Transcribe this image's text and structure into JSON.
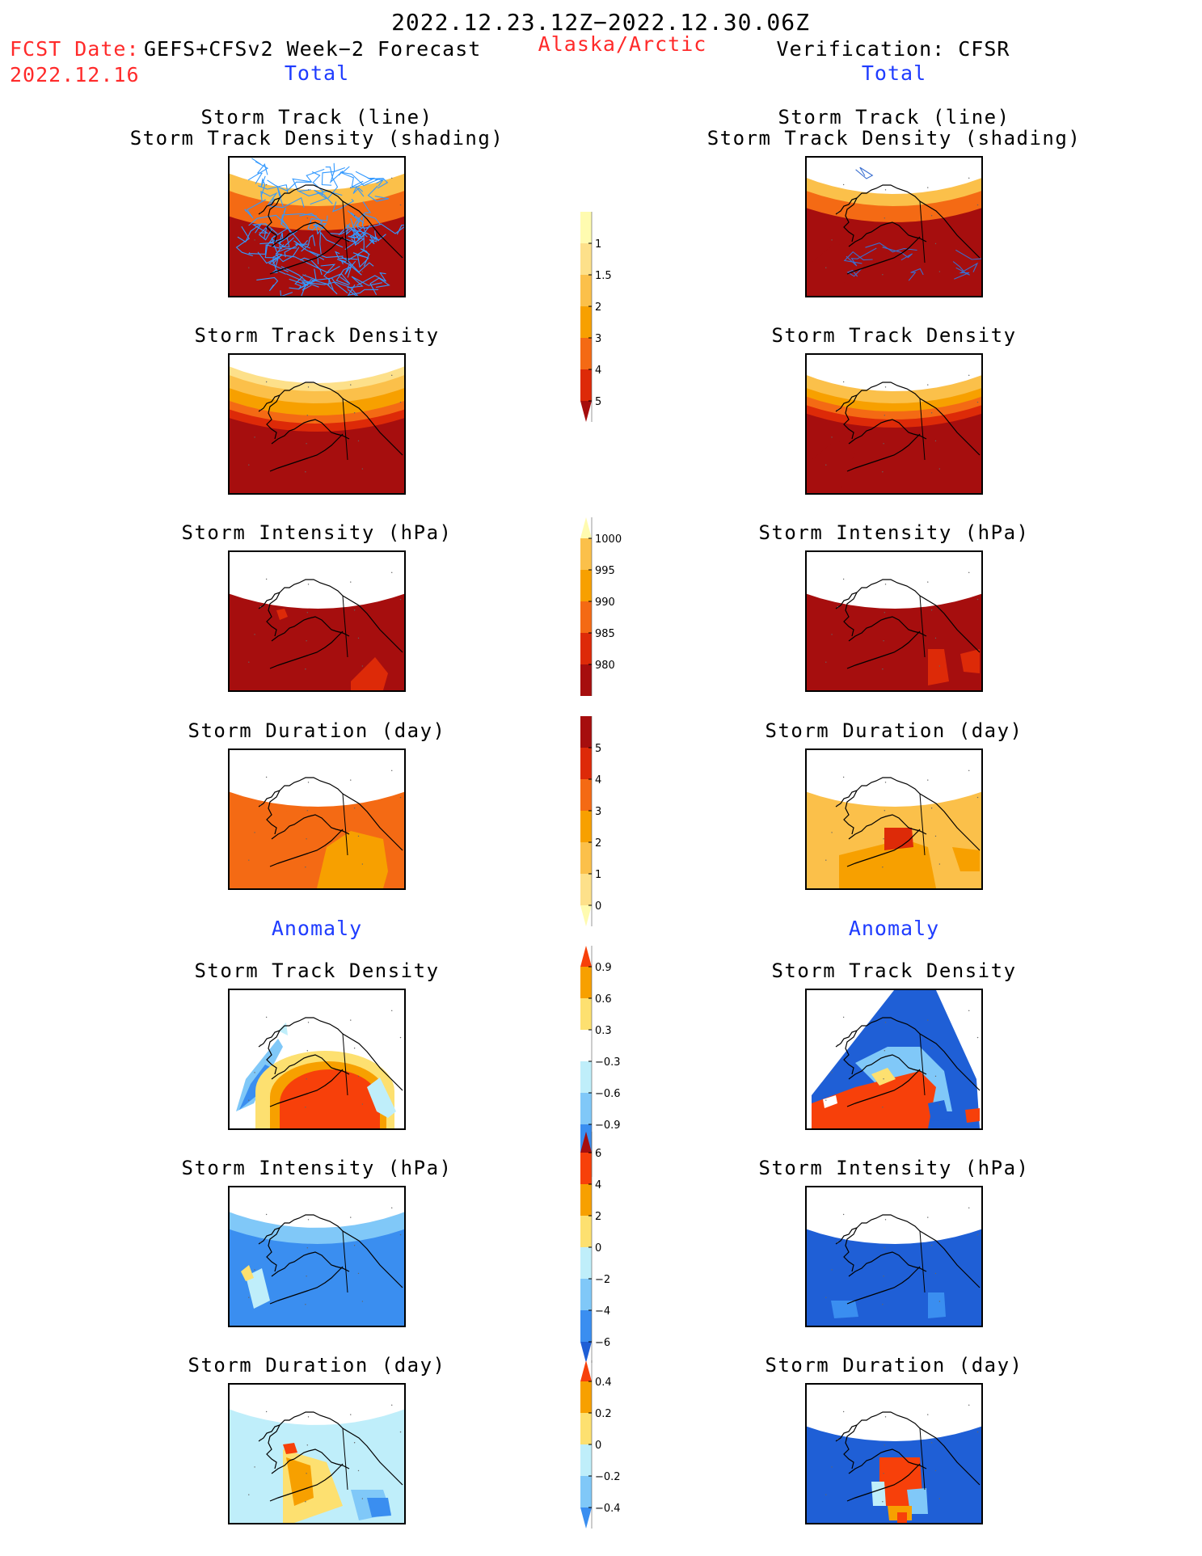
{
  "header": {
    "date_range": "2022.12.23.12Z−2022.12.30.06Z",
    "fcst_label": "FCST Date:",
    "fcst_model": "GEFS+CFSv2 Week−2 Forecast",
    "fcst_date": "2022.12.16",
    "region": "Alaska/Arctic",
    "verification": "Verification: CFSR",
    "left_total": "Total",
    "right_total": "Total",
    "left_anomaly": "Anomaly",
    "right_anomaly": "Anomaly"
  },
  "colors": {
    "title_red": "#ff2a2a",
    "title_blue": "#1f3cff",
    "track_line": "#3399ff"
  },
  "panels": {
    "left": [
      {
        "title1": "Storm Track (line)",
        "title2": "Storm Track Density (shading)",
        "kind": "track-total"
      },
      {
        "title1": "Storm Track Density",
        "title2": "",
        "kind": "density-total"
      },
      {
        "title1": "Storm Intensity (hPa)",
        "title2": "",
        "kind": "intensity-total"
      },
      {
        "title1": "Storm Duration (day)",
        "title2": "",
        "kind": "duration-total"
      },
      {
        "title1": "Storm Track Density",
        "title2": "",
        "kind": "density-anom"
      },
      {
        "title1": "Storm Intensity (hPa)",
        "title2": "",
        "kind": "intensity-anom"
      },
      {
        "title1": "Storm Duration (day)",
        "title2": "",
        "kind": "duration-anom"
      }
    ],
    "right": [
      {
        "title1": "Storm Track (line)",
        "title2": "Storm Track Density (shading)",
        "kind": "track-total-v"
      },
      {
        "title1": "Storm Track Density",
        "title2": "",
        "kind": "density-total-v"
      },
      {
        "title1": "Storm Intensity (hPa)",
        "title2": "",
        "kind": "intensity-total-v"
      },
      {
        "title1": "Storm Duration (day)",
        "title2": "",
        "kind": "duration-total-v"
      },
      {
        "title1": "Storm Track Density",
        "title2": "",
        "kind": "density-anom-v"
      },
      {
        "title1": "Storm Intensity (hPa)",
        "title2": "",
        "kind": "intensity-anom-v"
      },
      {
        "title1": "Storm Duration (day)",
        "title2": "",
        "kind": "duration-anom-v"
      }
    ]
  },
  "chart_data": {
    "type": "heatmap",
    "colorbars": [
      {
        "name": "track-density",
        "ticks": [
          "1",
          "1.5",
          "2",
          "3",
          "4",
          "5"
        ],
        "colors": [
          "#fffbb0",
          "#fde08a",
          "#fbc04a",
          "#f7a000",
          "#f46a14",
          "#dd2a08",
          "#a60e0e"
        ]
      },
      {
        "name": "intensity",
        "ticks": [
          "1000",
          "995",
          "990",
          "985",
          "980"
        ],
        "colors": [
          "#fffbb0",
          "#fbc04a",
          "#f7a000",
          "#f46a14",
          "#dd2a08",
          "#a60e0e"
        ]
      },
      {
        "name": "duration",
        "ticks": [
          "5",
          "4",
          "3",
          "2",
          "1",
          "0"
        ],
        "colors": [
          "#a60e0e",
          "#dd2a08",
          "#f46a14",
          "#f7a000",
          "#fbc04a",
          "#fde08a",
          "#fffbb0"
        ]
      },
      {
        "name": "density-anomaly",
        "ticks": [
          "0.9",
          "0.6",
          "0.3",
          "−0.3",
          "−0.6",
          "−0.9"
        ],
        "colors": [
          "#f7400a",
          "#f7a000",
          "#fde070",
          "#ffffff",
          "#bfeefa",
          "#80c8f8",
          "#3a8ef0",
          "#1f5fd6"
        ]
      },
      {
        "name": "intensity-anomaly",
        "ticks": [
          "6",
          "4",
          "2",
          "0",
          "−2",
          "−4",
          "−6"
        ],
        "colors": [
          "#a60e0e",
          "#f7400a",
          "#f7a000",
          "#fde070",
          "#bfeefa",
          "#80c8f8",
          "#3a8ef0",
          "#1f5fd6"
        ]
      },
      {
        "name": "duration-anomaly",
        "ticks": [
          "0.4",
          "0.2",
          "0",
          "−0.2",
          "−0.4"
        ],
        "colors": [
          "#f7400a",
          "#f7a000",
          "#fde070",
          "#bfeefa",
          "#80c8f8",
          "#3a8ef0"
        ]
      }
    ]
  }
}
